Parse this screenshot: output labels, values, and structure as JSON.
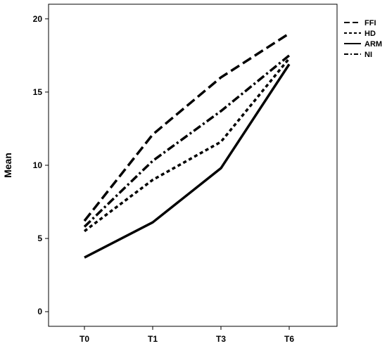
{
  "chart_data": {
    "type": "line",
    "ylabel": "Mean",
    "xlabel": "",
    "categories": [
      "T0",
      "T1",
      "T3",
      "T6"
    ],
    "ylim": [
      -1,
      21
    ],
    "yticks": [
      0,
      5,
      10,
      15,
      20
    ],
    "grid": false,
    "legend_position": "top-right, outside plot",
    "series": [
      {
        "name": "FFI",
        "dash": "long-dash",
        "values": [
          6.2,
          12.1,
          16.0,
          19.0
        ]
      },
      {
        "name": "HD",
        "dash": "short-dash",
        "values": [
          5.5,
          9.0,
          11.6,
          17.3
        ]
      },
      {
        "name": "ARM",
        "dash": "solid",
        "values": [
          3.7,
          6.1,
          9.8,
          16.9
        ]
      },
      {
        "name": "NI",
        "dash": "dash-dot",
        "values": [
          5.8,
          10.3,
          13.7,
          17.5
        ]
      }
    ]
  }
}
